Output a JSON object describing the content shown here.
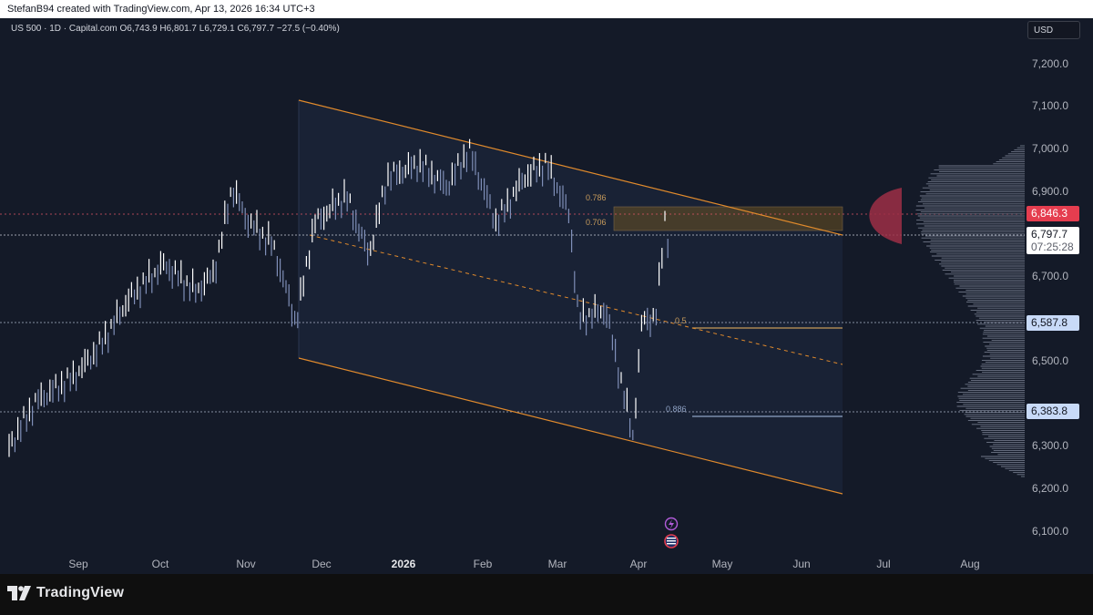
{
  "header": {
    "attribution": "StefanB94 created with TradingView.com, Apr 13, 2026 16:34 UTC+3"
  },
  "legend": {
    "text": "US 500 · 1D · Capital.com  O6,743.9  H6,801.7  L6,729.1  C6,797.7  −27.5 (−0.40%)"
  },
  "currency_button": "USD",
  "y_axis": {
    "ticks": [
      "7,200.0",
      "7,100.0",
      "7,000.0",
      "6,900.0",
      "6,800.0",
      "6,700.0",
      "6,600.0",
      "6,500.0",
      "6,400.0",
      "6,300.0",
      "6,200.0",
      "6,100.0"
    ]
  },
  "x_axis": {
    "ticks": [
      "Sep",
      "Oct",
      "Nov",
      "Dec",
      "2026",
      "Feb",
      "Mar",
      "Apr",
      "May",
      "Jun",
      "Jul",
      "Aug"
    ]
  },
  "price_badges": {
    "high_line": "6,846.3",
    "last_price": "6,797.7",
    "countdown": "07:25:28",
    "level_mid": "6,587.8",
    "level_low": "6,383.8"
  },
  "fib_levels": {
    "f786": "0.786",
    "f706": "0.706",
    "f5": "0.5",
    "f886": "0.886"
  },
  "colors": {
    "background": "#141a28",
    "channel": "#e08a2c",
    "candle_up": "#ffffff",
    "candle_down": "#7f8fb8",
    "last_badge": "#e53d4f",
    "level_badge": "#c8daf8"
  },
  "footer": {
    "brand": "TradingView"
  }
}
